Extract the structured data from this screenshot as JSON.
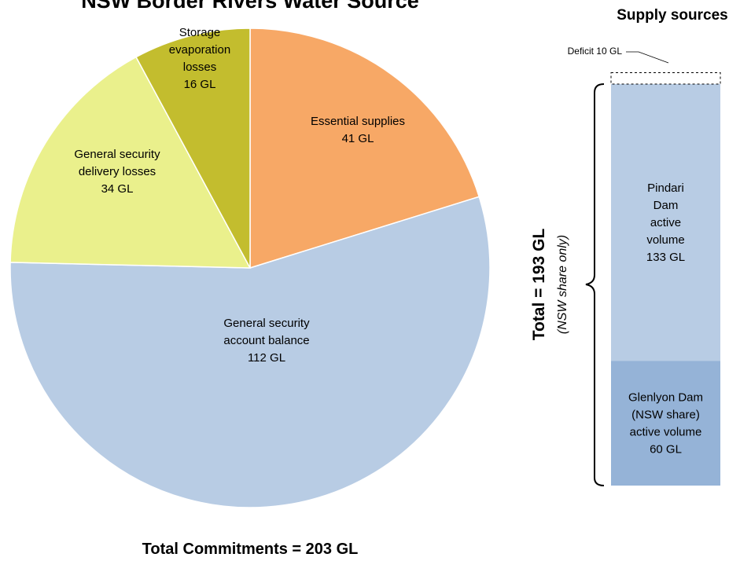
{
  "chart_data": [
    {
      "type": "pie",
      "title": "NSW Border Rivers Water Source",
      "footer": "Total Commitments = 203 GL",
      "unit": "GL",
      "slices": [
        {
          "name": "Essential supplies",
          "value": 41,
          "label_lines": [
            "Essential supplies",
            "41 GL"
          ],
          "color": "#F7A866"
        },
        {
          "name": "General security account balance",
          "value": 112,
          "label_lines": [
            "General security",
            "account balance",
            "112 GL"
          ],
          "color": "#B8CCE4"
        },
        {
          "name": "General security delivery losses",
          "value": 34,
          "label_lines": [
            "General security",
            "delivery losses",
            "34 GL"
          ],
          "color": "#EAF08C"
        },
        {
          "name": "Storage evaporation losses",
          "value": 16,
          "label_lines": [
            "Storage",
            "evaporation",
            "losses",
            "16 GL"
          ],
          "color": "#C3BD2E"
        }
      ],
      "total": 203
    },
    {
      "type": "bar",
      "title": "Supply sources",
      "stacked": true,
      "unit": "GL",
      "segments": [
        {
          "name": "Glenlyon Dam (NSW share) active volume",
          "value": 60,
          "label_lines": [
            "Glenlyon Dam",
            "(NSW share)",
            "active volume",
            "60 GL"
          ],
          "color": "#95B3D7"
        },
        {
          "name": "Pindari Dam active volume",
          "value": 133,
          "label_lines": [
            "Pindari",
            "Dam",
            "active",
            "volume",
            "133 GL"
          ],
          "color": "#B8CCE4"
        },
        {
          "name": "Deficit",
          "value": 10,
          "label": "Deficit 10 GL",
          "style": "dashed-outline"
        }
      ],
      "bracket_label": "Total = 193 GL",
      "bracket_sublabel": "(NSW share only)",
      "total": 193
    }
  ]
}
